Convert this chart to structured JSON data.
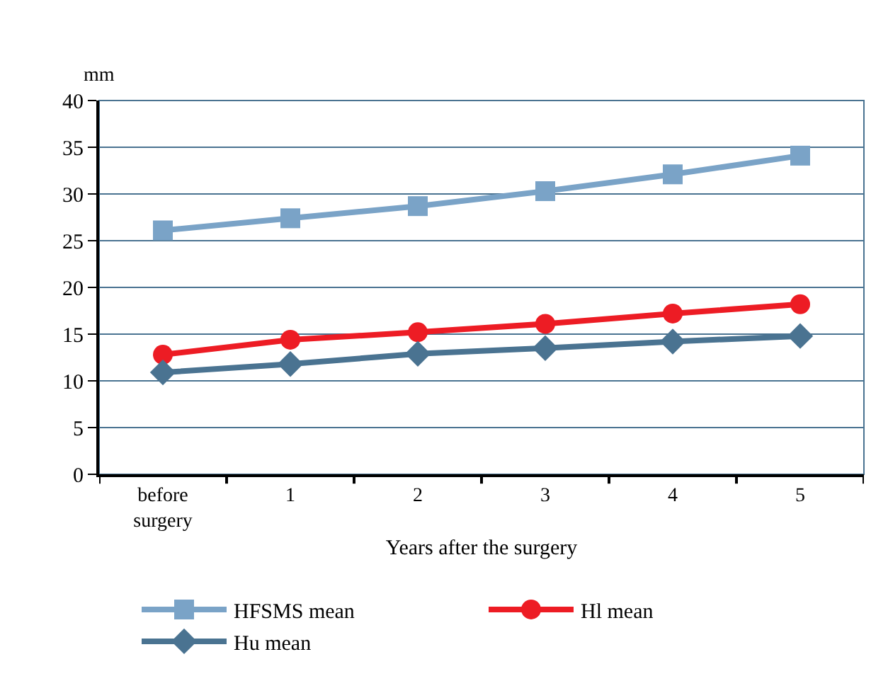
{
  "chart_data": {
    "type": "line",
    "ylabel": "mm",
    "xlabel": "Years after the surgery",
    "categories": [
      "before surgery",
      "1",
      "2",
      "3",
      "4",
      "5"
    ],
    "series": [
      {
        "name": "HFSMS mean",
        "color": "#7aa3c7",
        "marker": "square",
        "values": [
          26.1,
          27.4,
          28.7,
          30.3,
          32.1,
          34.1
        ]
      },
      {
        "name": "Hl mean",
        "color": "#ed1c24",
        "marker": "circle",
        "values": [
          12.8,
          14.4,
          15.2,
          16.1,
          17.2,
          18.2
        ]
      },
      {
        "name": "Hu mean",
        "color": "#4a7391",
        "marker": "diamond",
        "values": [
          10.9,
          11.8,
          12.9,
          13.5,
          14.2,
          14.8
        ]
      }
    ],
    "ylim": [
      0,
      40
    ],
    "yticks": [
      0,
      5,
      10,
      15,
      20,
      25,
      30,
      35,
      40
    ],
    "grid": "y",
    "legend": "bottom"
  }
}
